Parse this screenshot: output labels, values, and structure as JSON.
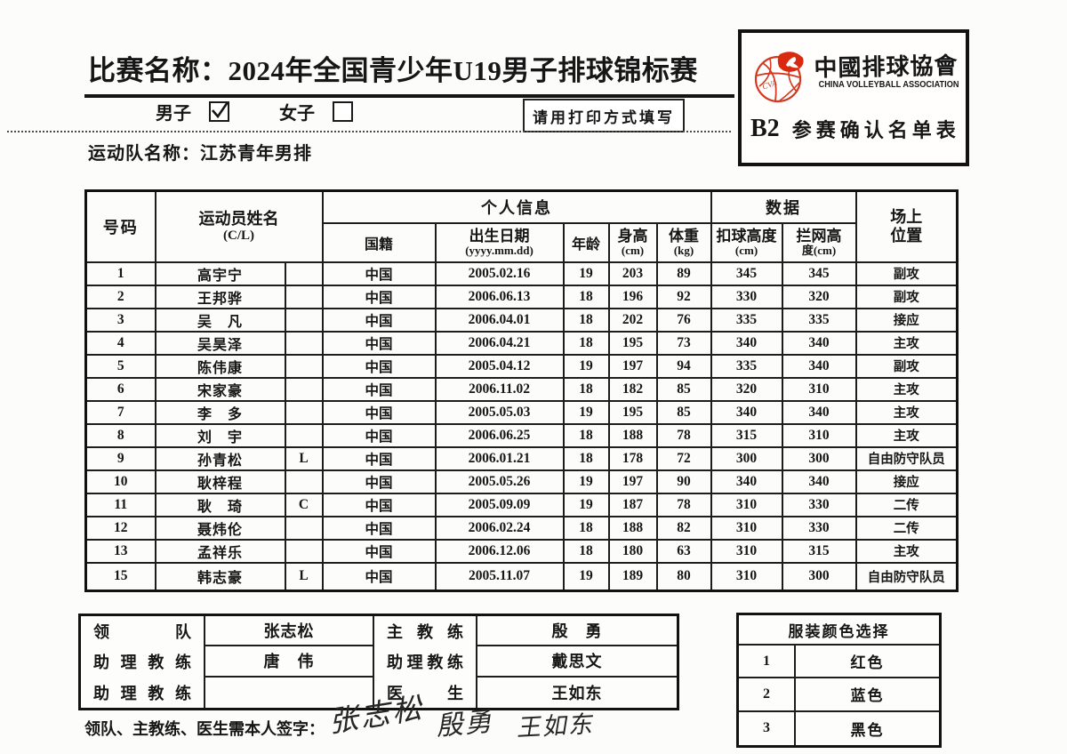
{
  "colors": {
    "ink": "#161616",
    "logo_red": "#d4391f",
    "paper": "#fcfcfa"
  },
  "header": {
    "title": "比赛名称：2024年全国青少年U19男子排球锦标赛",
    "male_label": "男子",
    "female_label": "女子",
    "male_checked": true,
    "female_checked": false,
    "print_notice": "请用打印方式填写",
    "team_name": "运动队名称：江苏青年男排"
  },
  "logo_box": {
    "org_cn": "中國排球協會",
    "org_en": "CHINA VOLLEYBALL ASSOCIATION",
    "monogram": "CVA",
    "form_code": "B2",
    "form_name": "参赛确认名单表"
  },
  "roster": {
    "headers": {
      "no": "号码",
      "name1": "运动员姓名",
      "name2": "(C/L)",
      "personal": "个人信息",
      "data": "数据",
      "nat": "国籍",
      "dob1": "出生日期",
      "dob2": "(yyyy.mm.dd)",
      "age": "年龄",
      "h1": "身高",
      "h2": "(cm)",
      "w1": "体重",
      "w2": "(kg)",
      "spike1": "扣球高度",
      "spike2": "(cm)",
      "block1": "拦网高",
      "block2": "度(cm)",
      "pos1": "场上",
      "pos2": "位置"
    },
    "players": [
      {
        "no": "1",
        "name": "高宇宁",
        "cl": "",
        "nat": "中国",
        "dob": "2005.02.16",
        "age": "19",
        "height": "203",
        "weight": "89",
        "spike": "345",
        "block": "345",
        "pos": "副攻"
      },
      {
        "no": "2",
        "name": "王邦骅",
        "cl": "",
        "nat": "中国",
        "dob": "2006.06.13",
        "age": "18",
        "height": "196",
        "weight": "92",
        "spike": "330",
        "block": "320",
        "pos": "副攻"
      },
      {
        "no": "3",
        "name": "吴　凡",
        "cl": "",
        "nat": "中国",
        "dob": "2006.04.01",
        "age": "18",
        "height": "202",
        "weight": "76",
        "spike": "335",
        "block": "335",
        "pos": "接应"
      },
      {
        "no": "4",
        "name": "吴昊泽",
        "cl": "",
        "nat": "中国",
        "dob": "2006.04.21",
        "age": "18",
        "height": "195",
        "weight": "73",
        "spike": "340",
        "block": "340",
        "pos": "主攻"
      },
      {
        "no": "5",
        "name": "陈伟康",
        "cl": "",
        "nat": "中国",
        "dob": "2005.04.12",
        "age": "19",
        "height": "197",
        "weight": "94",
        "spike": "335",
        "block": "340",
        "pos": "副攻"
      },
      {
        "no": "6",
        "name": "宋家豪",
        "cl": "",
        "nat": "中国",
        "dob": "2006.11.02",
        "age": "18",
        "height": "182",
        "weight": "85",
        "spike": "320",
        "block": "310",
        "pos": "主攻"
      },
      {
        "no": "7",
        "name": "李　多",
        "cl": "",
        "nat": "中国",
        "dob": "2005.05.03",
        "age": "19",
        "height": "195",
        "weight": "85",
        "spike": "340",
        "block": "340",
        "pos": "主攻"
      },
      {
        "no": "8",
        "name": "刘　宇",
        "cl": "",
        "nat": "中国",
        "dob": "2006.06.25",
        "age": "18",
        "height": "188",
        "weight": "78",
        "spike": "315",
        "block": "310",
        "pos": "主攻"
      },
      {
        "no": "9",
        "name": "孙青松",
        "cl": "L",
        "nat": "中国",
        "dob": "2006.01.21",
        "age": "18",
        "height": "178",
        "weight": "72",
        "spike": "300",
        "block": "300",
        "pos": "自由防守队员"
      },
      {
        "no": "10",
        "name": "耿梓程",
        "cl": "",
        "nat": "中国",
        "dob": "2005.05.26",
        "age": "19",
        "height": "197",
        "weight": "90",
        "spike": "340",
        "block": "340",
        "pos": "接应"
      },
      {
        "no": "11",
        "name": "耿　琦",
        "cl": "C",
        "nat": "中国",
        "dob": "2005.09.09",
        "age": "19",
        "height": "187",
        "weight": "78",
        "spike": "310",
        "block": "330",
        "pos": "二传"
      },
      {
        "no": "12",
        "name": "聂炜伦",
        "cl": "",
        "nat": "中国",
        "dob": "2006.02.24",
        "age": "18",
        "height": "188",
        "weight": "82",
        "spike": "310",
        "block": "330",
        "pos": "二传"
      },
      {
        "no": "13",
        "name": "孟祥乐",
        "cl": "",
        "nat": "中国",
        "dob": "2006.12.06",
        "age": "18",
        "height": "180",
        "weight": "63",
        "spike": "310",
        "block": "315",
        "pos": "主攻"
      },
      {
        "no": "15",
        "name": "韩志豪",
        "cl": "L",
        "nat": "中国",
        "dob": "2005.11.07",
        "age": "19",
        "height": "189",
        "weight": "80",
        "spike": "310",
        "block": "300",
        "pos": "自由防守队员"
      }
    ]
  },
  "staff": {
    "left": [
      {
        "label": "领队",
        "value": "张志松"
      },
      {
        "label": "助理教练",
        "value": "唐　伟"
      },
      {
        "label": "助理教练",
        "value": ""
      }
    ],
    "right": [
      {
        "label": "主教练",
        "value": "殷　勇"
      },
      {
        "label": "助理教练",
        "value": "戴思文"
      },
      {
        "label": "医生",
        "value": "王如东"
      }
    ]
  },
  "uniform": {
    "title": "服装颜色选择",
    "options": [
      {
        "no": "1",
        "color": "红色"
      },
      {
        "no": "2",
        "color": "蓝色"
      },
      {
        "no": "3",
        "color": "黑色"
      }
    ]
  },
  "signature": {
    "label": "领队、主教练、医生需本人签字：",
    "signatures": [
      "张志松",
      "殷勇",
      "王如东"
    ]
  }
}
